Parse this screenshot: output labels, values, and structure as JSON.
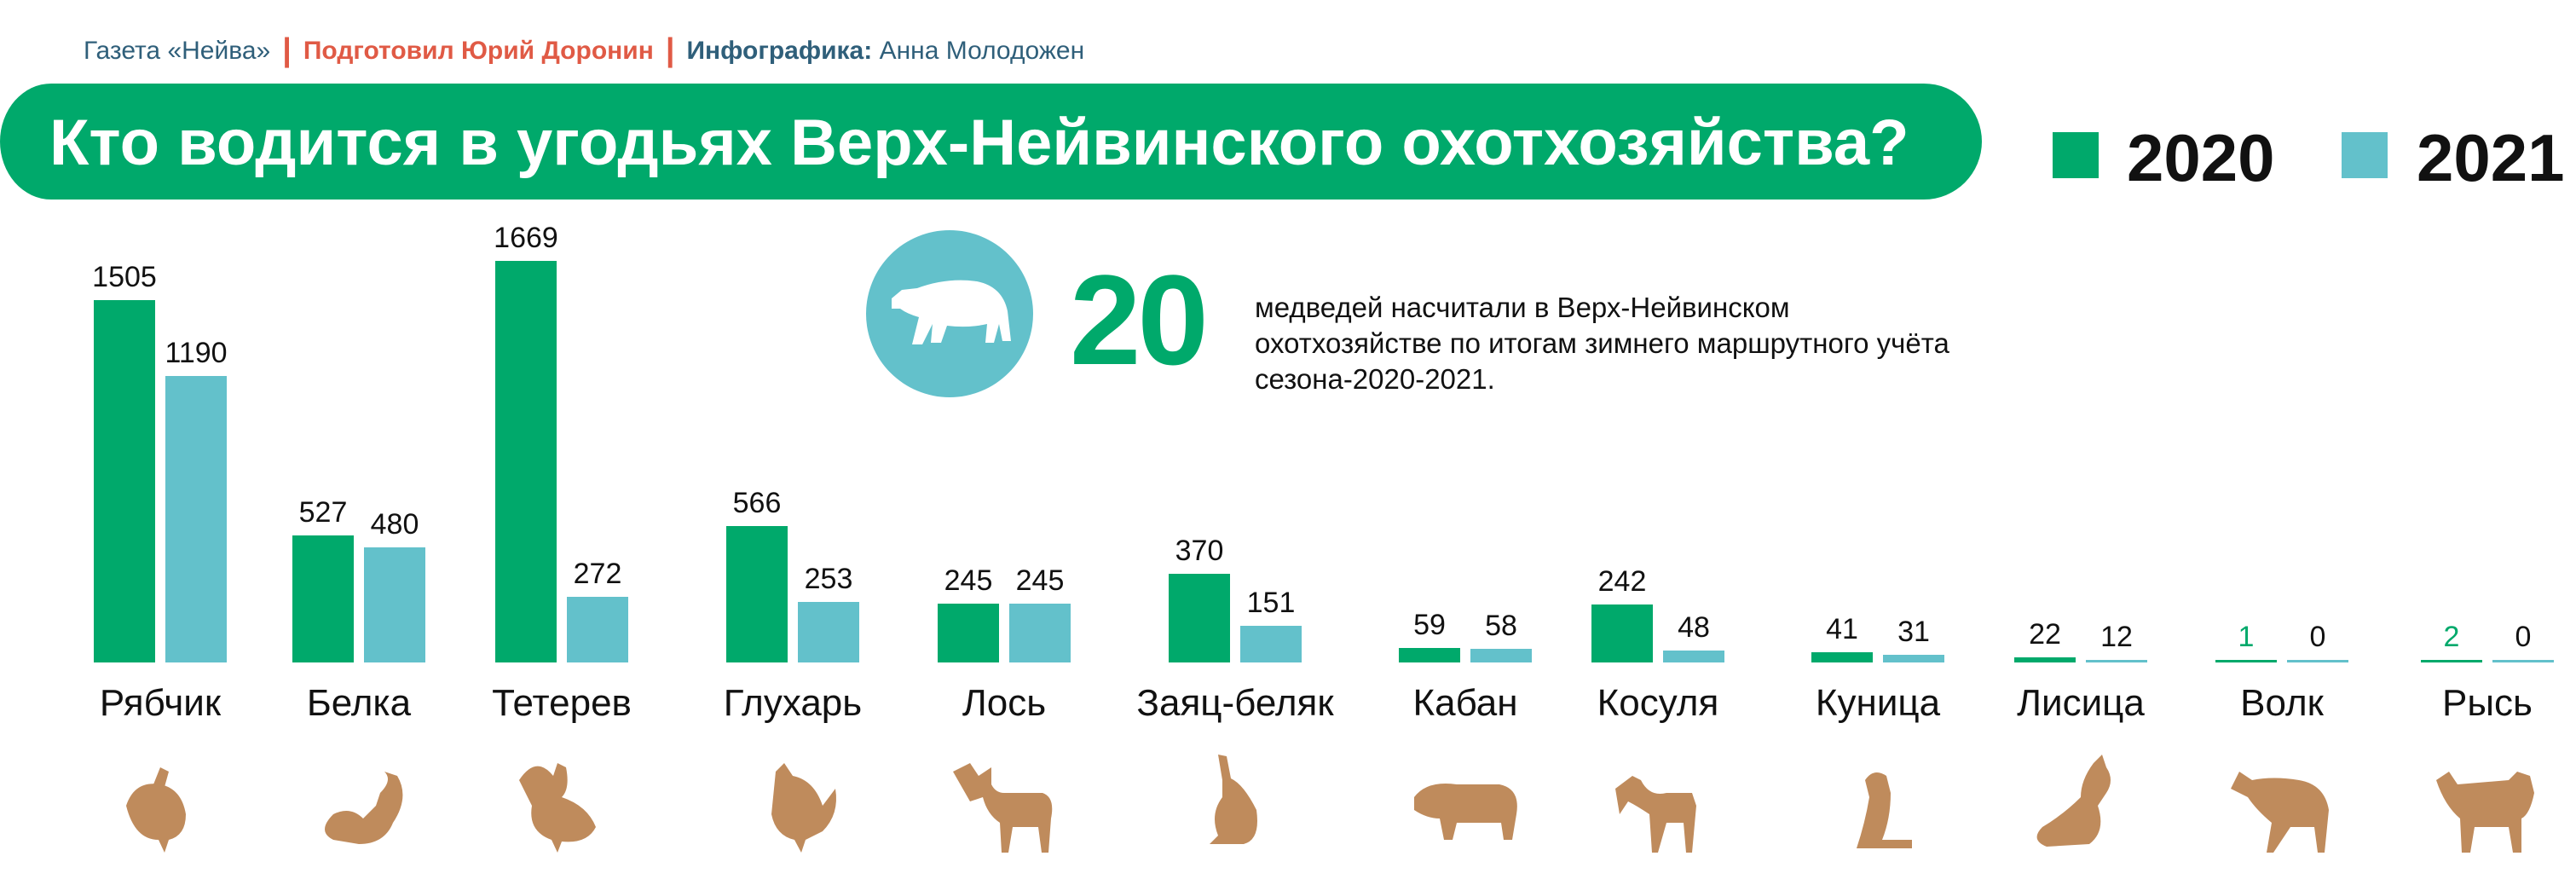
{
  "credits": {
    "newspaper": "Газета «Нейва»",
    "author": "Подготовил Юрий Доронин",
    "infographic_label": "Инфографика:",
    "infographic_name": "Анна Молодожен",
    "separator": "|"
  },
  "colors": {
    "y2020": "#00a96b",
    "y2021": "#63c1cb",
    "accent": "#e05a45",
    "animal": "#bf8b5c"
  },
  "highlight": {
    "number": "20",
    "text": "медведей насчитали в Верх-Нейвинском охотхозяйстве по итогам зимнего маршрутного учёта сезона-2020-2021."
  },
  "chart_data": {
    "type": "bar",
    "title": "Кто водится в угодьях Верх-Нейвинского охотхозяйства?",
    "xlabel": "",
    "ylabel": "",
    "legend_position": "top-right",
    "categories": [
      "Рябчик",
      "Белка",
      "Тетерев",
      "Глухарь",
      "Лось",
      "Заяц-беляк",
      "Кабан",
      "Косуля",
      "Куница",
      "Лисица",
      "Волк",
      "Рысь"
    ],
    "series": [
      {
        "name": "2020",
        "values": [
          1505,
          527,
          1669,
          566,
          245,
          370,
          59,
          242,
          41,
          22,
          1,
          2
        ]
      },
      {
        "name": "2021",
        "values": [
          1190,
          480,
          272,
          253,
          245,
          151,
          58,
          48,
          31,
          12,
          0,
          0
        ]
      }
    ],
    "ylim": [
      0,
      1700
    ]
  }
}
